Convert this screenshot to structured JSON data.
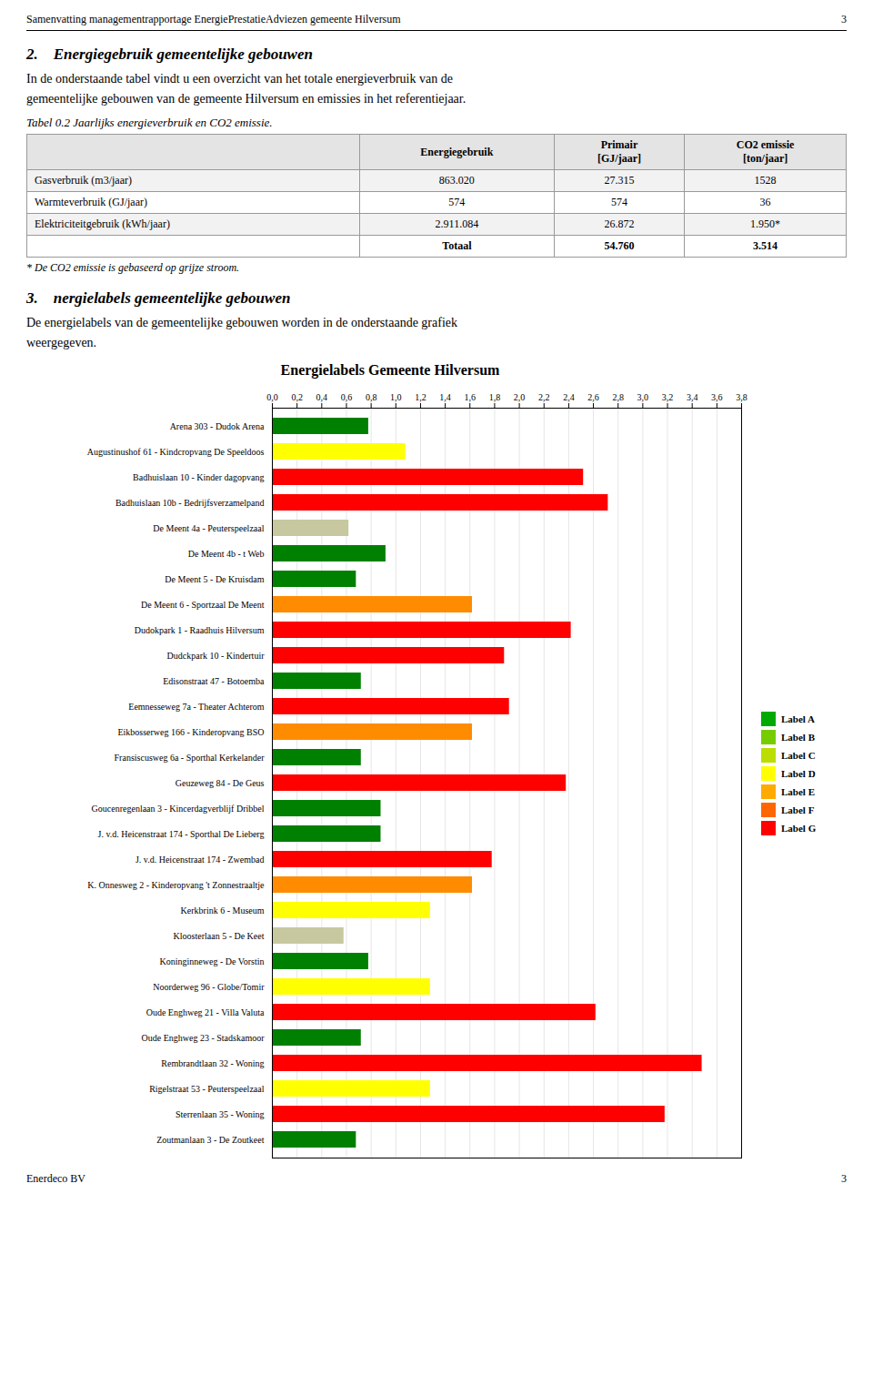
{
  "page": {
    "header": "Samenvatting managementrapportage EnergiePrestatieAdviezen gemeente Hilversum",
    "page_number": "3",
    "section_2": {
      "title": "2.    Energiegebruik gemeentelijke gebouwen",
      "body": "In de onderstaande tabel vindt u een overzicht van het totale energieverbruik van de\ngemeentelijke gebouwen van de gemeente Hilversum en emissies in het referentiejaar."
    },
    "table": {
      "caption": "Tabel 0.2 Jaarlijks energieverbruik en CO2 emissie.",
      "columns": [
        null,
        "Energiegebruik",
        "Primair\n[GJ/jaar]",
        "CO2 emissie\n[ton/jaar]"
      ],
      "rows": [
        [
          "Gasverbruik (m3/jaar)",
          "863.020",
          "27.315",
          "1528"
        ],
        [
          "Warmteverbruik (GJ/jaar)",
          "574",
          "574",
          "36"
        ],
        [
          "Elektriciteitgebruik (kWh/jaar)",
          "2.911.084",
          "26.872",
          "1.950*"
        ],
        [
          null,
          "Totaal",
          "54.760",
          "3.514"
        ]
      ],
      "note": "* De CO2 emissie is gebaseerd op grijze stroom."
    },
    "section_3": {
      "title": "3.    nergielabels gemeentelijke gebouwen",
      "body": "De energielabels van de gemeentelijke gebouwen worden in de onderstaande grafiek\nweergegeven."
    },
    "footer_left": "Enerdeco BV",
    "footer_right": "3"
  },
  "chart_data": {
    "type": "bar",
    "orientation": "horizontal",
    "title": "Energielabels Gemeente Hilversum",
    "categories": [
      "Arena 303 - Dudok Arena",
      "Augustinushof 61 - Kindcropvang De Speeldoos",
      "Badhuislaan 10 - Kinder dagopvang",
      "Badhuislaan 10b - Bedrijfsverzamelpand",
      "De Meent 4a - Peuterspeelzaal",
      "De Meent 4b - t Web",
      "De Meent 5 - De Kruisdam",
      "De Meent 6 - Sportzaal De Meent",
      "Dudokpark 1 - Raadhuis Hilversum",
      "Dudckpark 10 - Kindertuir",
      "Edisonstraat 47 - Botoemba",
      "Eemnesseweg 7a - Theater Achterom",
      "Eikbosserweg 166 - Kinderopvang BSO",
      "Fransiscusweg 6a - Sporthal Kerkelander",
      "Geuzeweg 84 - De Geus",
      "Goucenregenlaan 3 - Kincerdagverblijf Dribbel",
      "J. v.d. Heicenstraat 174 - Sporthal De Lieberg",
      "J. v.d. Heicenstraat 174 - Zwembad",
      "K. Onnesweg 2 - Kinderopvang 't Zonnestraaltje",
      "Kerkbrink 6 - Museum",
      "Kloosterlaan 5 - De Keet",
      "Koninginneweg - De Vorstin",
      "Noorderweg 96 - Globe/Tomir",
      "Oude Enghweg 21 - Villa Valuta",
      "Oude Enghweg 23 - Stadskamoor",
      "Rembrandtlaan 32 - Woning",
      "Rigelstraat 53 - Peuterspeelzaal",
      "Sterrenlaan 35 - Woning",
      "Zoutmanlaan 3 - De Zoutkeet"
    ],
    "values": [
      0.78,
      1.08,
      2.52,
      2.72,
      0.62,
      0.92,
      0.68,
      1.62,
      2.42,
      1.88,
      0.72,
      1.92,
      1.62,
      0.72,
      2.38,
      0.88,
      0.88,
      1.78,
      1.62,
      1.28,
      0.58,
      0.78,
      1.28,
      2.62,
      0.72,
      3.48,
      1.28,
      3.18,
      0.68
    ],
    "colors": [
      "#008000",
      "#ffff00",
      "#ff0000",
      "#ff0000",
      "#c8c8a0",
      "#008000",
      "#008000",
      "#ff8c00",
      "#ff0000",
      "#ff0000",
      "#008000",
      "#ff0000",
      "#ff8c00",
      "#008000",
      "#ff0000",
      "#008000",
      "#008000",
      "#ff0000",
      "#ff8c00",
      "#ffff00",
      "#c8c8a0",
      "#008000",
      "#ffff00",
      "#ff0000",
      "#008000",
      "#ff0000",
      "#ffff00",
      "#ff0000",
      "#008000"
    ],
    "xlim": [
      0,
      3.8
    ],
    "xticks": [
      {
        "value": 0,
        "label": "0,0"
      },
      {
        "value": 0.2,
        "label": "0,2"
      },
      {
        "value": 0.4,
        "label": "0,4"
      },
      {
        "value": 0.6,
        "label": "0,6"
      },
      {
        "value": 0.8,
        "label": "0,8"
      },
      {
        "value": 1.0,
        "label": "1,0"
      },
      {
        "value": 1.2,
        "label": "1,2"
      },
      {
        "value": 1.4,
        "label": "1,4"
      },
      {
        "value": 1.6,
        "label": "1,6"
      },
      {
        "value": 1.8,
        "label": "1,8"
      },
      {
        "value": 2.0,
        "label": "2,0"
      },
      {
        "value": 2.2,
        "label": "2,2"
      },
      {
        "value": 2.4,
        "label": "2,4"
      },
      {
        "value": 2.6,
        "label": "2,6"
      },
      {
        "value": 2.8,
        "label": "2,8"
      },
      {
        "value": 3.0,
        "label": "3,0"
      },
      {
        "value": 3.2,
        "label": "3,2"
      },
      {
        "value": 3.4,
        "label": "3,4"
      },
      {
        "value": 3.6,
        "label": "3,6"
      },
      {
        "value": 3.8,
        "label": "3,8"
      }
    ],
    "grid": true,
    "legend": "right",
    "legend_labels": [
      "Label A",
      "Label B",
      "Label C",
      "Label D",
      "Label E",
      "Label F",
      "Label G"
    ],
    "legend_colors": [
      "#00aa00",
      "#77cc00",
      "#bbdd00",
      "#ffff00",
      "#ffaa00",
      "#ff6600",
      "#ff0000"
    ]
  }
}
